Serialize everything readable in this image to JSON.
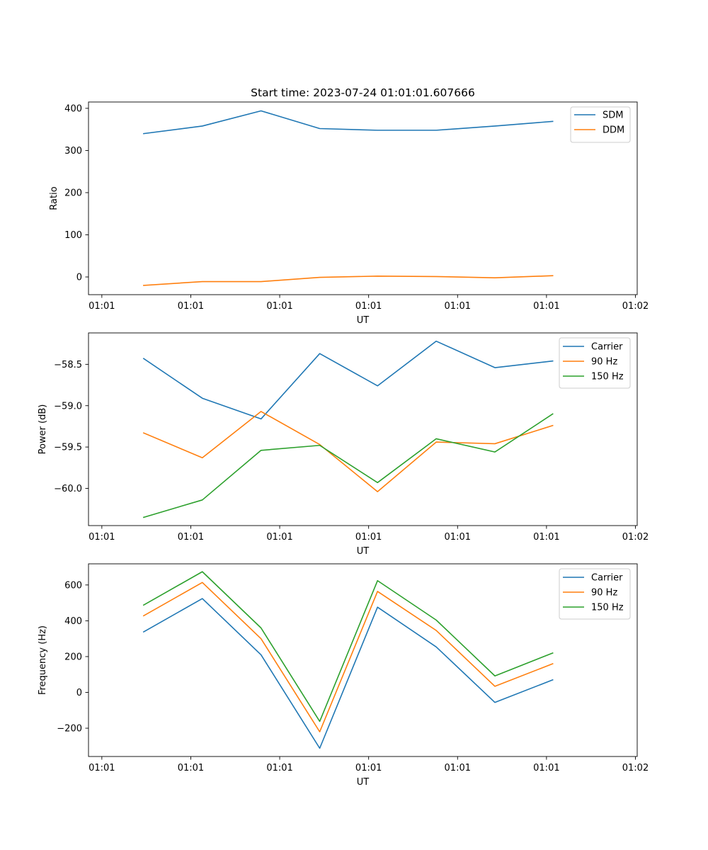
{
  "figure_title": "Start time: 2023-07-24 01:01:01.607666",
  "colors": {
    "blue": "#1f77b4",
    "orange": "#ff7f0e",
    "green": "#2ca02c"
  },
  "chart_data": [
    {
      "type": "line",
      "title": "Start time: 2023-07-24 01:01:01.607666",
      "xlabel": "UT",
      "ylabel": "Ratio",
      "x_ticks": [
        "01:01",
        "01:01",
        "01:01",
        "01:01",
        "01:01",
        "01:01",
        "01:02"
      ],
      "x_tick_positions": [
        0,
        1,
        2,
        3,
        4,
        5,
        6
      ],
      "xlim": [
        -0.15,
        6.02
      ],
      "x": [
        0.47,
        1.13,
        1.79,
        2.45,
        3.1,
        3.76,
        4.42,
        5.07
      ],
      "ylim": [
        -42,
        415
      ],
      "y_ticks": [
        0,
        100,
        200,
        300,
        400
      ],
      "y_tick_labels": [
        "0",
        "100",
        "200",
        "300",
        "400"
      ],
      "legend_position": "top-right",
      "series": [
        {
          "name": "SDM",
          "color": "#1f77b4",
          "values": [
            340,
            358,
            394,
            352,
            348,
            348,
            358,
            369
          ]
        },
        {
          "name": "DDM",
          "color": "#ff7f0e",
          "values": [
            -20,
            -11,
            -11,
            -1,
            2,
            1,
            -2,
            3
          ]
        }
      ]
    },
    {
      "type": "line",
      "title": "",
      "xlabel": "UT",
      "ylabel": "Power (dB)",
      "x_ticks": [
        "01:01",
        "01:01",
        "01:01",
        "01:01",
        "01:01",
        "01:01",
        "01:02"
      ],
      "x_tick_positions": [
        0,
        1,
        2,
        3,
        4,
        5,
        6
      ],
      "xlim": [
        -0.15,
        6.02
      ],
      "x": [
        0.47,
        1.13,
        1.79,
        2.45,
        3.1,
        3.76,
        4.42,
        5.07
      ],
      "ylim": [
        -60.45,
        -58.12
      ],
      "y_ticks": [
        -60.0,
        -59.5,
        -59.0,
        -58.5
      ],
      "y_tick_labels": [
        "−60.0",
        "−59.5",
        "−59.0",
        "−58.5"
      ],
      "legend_position": "top-right",
      "series": [
        {
          "name": "Carrier",
          "color": "#1f77b4",
          "values": [
            -58.43,
            -58.91,
            -59.16,
            -58.37,
            -58.76,
            -58.22,
            -58.54,
            -58.46
          ]
        },
        {
          "name": "90 Hz",
          "color": "#ff7f0e",
          "values": [
            -59.33,
            -59.63,
            -59.07,
            -59.47,
            -60.04,
            -59.44,
            -59.46,
            -59.24
          ]
        },
        {
          "name": "150 Hz",
          "color": "#2ca02c",
          "values": [
            -60.35,
            -60.14,
            -59.54,
            -59.48,
            -59.93,
            -59.4,
            -59.56,
            -59.1
          ]
        }
      ]
    },
    {
      "type": "line",
      "title": "",
      "xlabel": "UT",
      "ylabel": "Frequency (Hz)",
      "x_ticks": [
        "01:01",
        "01:01",
        "01:01",
        "01:01",
        "01:01",
        "01:01",
        "01:02"
      ],
      "x_tick_positions": [
        0,
        1,
        2,
        3,
        4,
        5,
        6
      ],
      "xlim": [
        -0.15,
        6.02
      ],
      "x": [
        0.47,
        1.13,
        1.79,
        2.45,
        3.1,
        3.76,
        4.42,
        5.07
      ],
      "ylim": [
        -358,
        718
      ],
      "y_ticks": [
        -200,
        0,
        200,
        400,
        600
      ],
      "y_tick_labels": [
        "−200",
        "0",
        "200",
        "400",
        "600"
      ],
      "legend_position": "top-right",
      "series": [
        {
          "name": "Carrier",
          "color": "#1f77b4",
          "values": [
            338,
            524,
            210,
            -312,
            476,
            254,
            -56,
            70
          ]
        },
        {
          "name": "90 Hz",
          "color": "#ff7f0e",
          "values": [
            428,
            614,
            300,
            -220,
            564,
            346,
            34,
            160
          ]
        },
        {
          "name": "150 Hz",
          "color": "#2ca02c",
          "values": [
            488,
            674,
            360,
            -162,
            624,
            404,
            92,
            220
          ]
        }
      ]
    }
  ]
}
